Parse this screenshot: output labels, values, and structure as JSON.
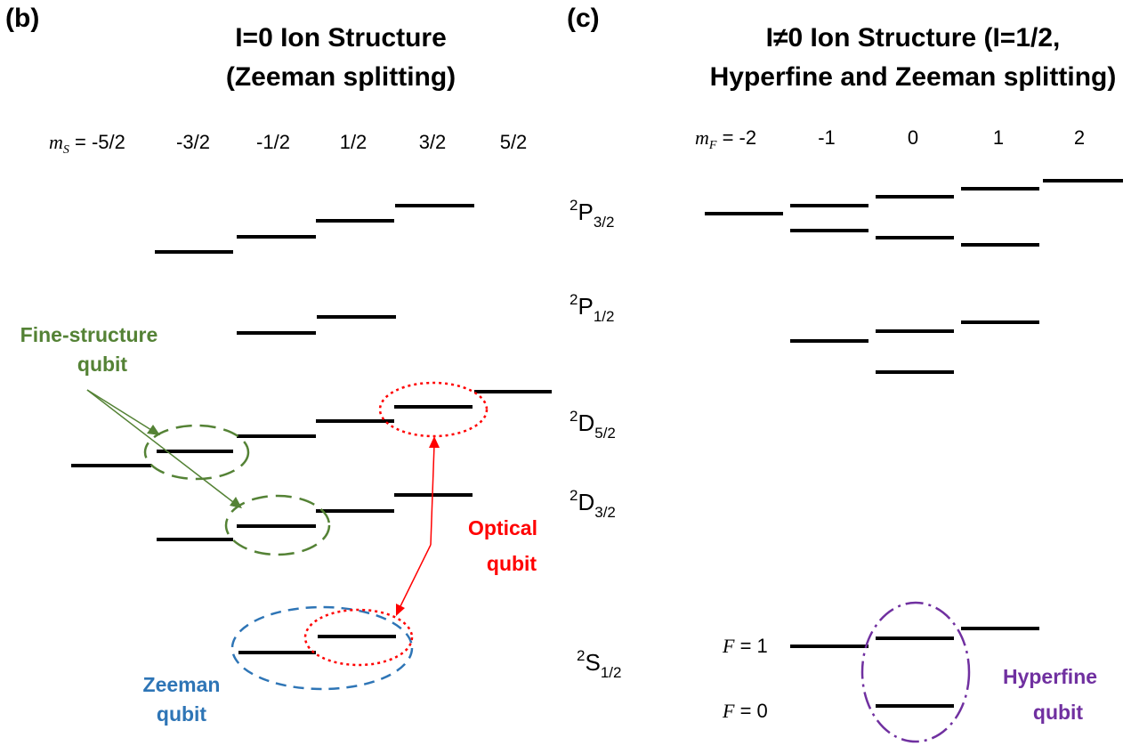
{
  "panel_b": {
    "letter": "(b)",
    "title_line1": "I=0 Ion Structure",
    "title_line2": "(Zeeman splitting)",
    "m_symbol": "m",
    "m_subscript": "S",
    "m_equals": " = ",
    "m_values": [
      "-5/2",
      "-3/2",
      "-1/2",
      "1/2",
      "3/2",
      "5/2"
    ],
    "labels": {
      "fine_line1": "Fine-structure",
      "fine_line2": "qubit",
      "optical_line1": "Optical",
      "optical_line2": "qubit",
      "zeeman_line1": "Zeeman",
      "zeeman_line2": "qubit"
    }
  },
  "panel_c": {
    "letter": "(c)",
    "title_line1": "I≠0 Ion Structure (I=1/2,",
    "title_line2": "Hyperfine and Zeeman splitting)",
    "m_symbol": "m",
    "m_subscript": "F",
    "m_equals": " = ",
    "m_values": [
      "-2",
      "-1",
      "0",
      "1",
      "2"
    ],
    "f1_label_symbol": "F",
    "f1_label_value": " = 1",
    "f0_label_symbol": "F",
    "f0_label_value": " = 0",
    "hyperfine_line1": "Hyperfine",
    "hyperfine_line2": "qubit"
  },
  "states": [
    {
      "sup": "2",
      "main": "P",
      "sub": "3/2"
    },
    {
      "sup": "2",
      "main": "P",
      "sub": "1/2"
    },
    {
      "sup": "2",
      "main": "D",
      "sub": "5/2"
    },
    {
      "sup": "2",
      "main": "D",
      "sub": "3/2"
    },
    {
      "sup": "2",
      "main": "S",
      "sub": "1/2"
    }
  ],
  "colors": {
    "level": "#000000",
    "fine_structure": "#548235",
    "optical": "#ff0000",
    "zeeman": "#2e75b6",
    "hyperfine": "#7030a0"
  }
}
